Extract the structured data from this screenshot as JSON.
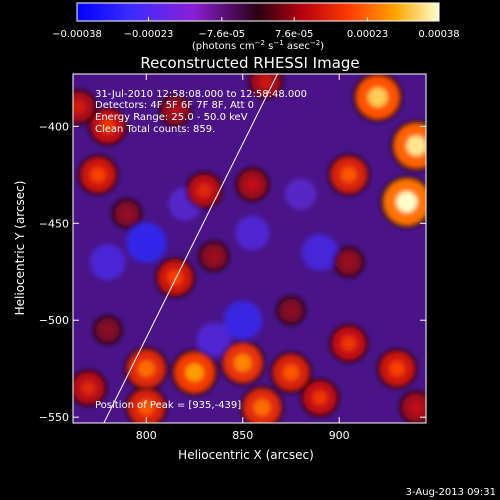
{
  "chart_data": {
    "type": "heatmap",
    "title": "Reconstructed RHESSI Image",
    "xlabel": "Heliocentric X (arcsec)",
    "ylabel": "Heliocentric Y (arcsec)",
    "xlim": [
      762,
      945
    ],
    "ylim": [
      -553,
      -373
    ],
    "xticks": [
      800,
      850,
      900
    ],
    "yticks": [
      -400,
      -450,
      -500,
      -550
    ],
    "colorbar": {
      "min": -0.00038,
      "max": 0.00038,
      "tick_labels": [
        "-0.00038",
        "-0.00023",
        "-7.6e-05",
        "7.6e-05",
        "0.00023",
        "0.00038"
      ],
      "label_parts": [
        "(photons cm",
        "-2",
        " s",
        "-1",
        " asec",
        "-2",
        ")"
      ]
    },
    "annotations": [
      "31-Jul-2010 12:58:08.000 to 12:58:48.000",
      "Detectors: 4F 5F 6F 7F 8F, Att 0",
      "Energy Range: 25.0 - 50.0 keV",
      "Clean    Total counts: 859."
    ],
    "peak_label": "Position of Peak = [935,-439]",
    "peak": [
      935,
      -439
    ],
    "limb_line": [
      [
        778,
        -553
      ],
      [
        868,
        -373
      ]
    ],
    "hot_spots": [
      {
        "x": 780,
        "y": -400,
        "value": 0.0002
      },
      {
        "x": 775,
        "y": -425,
        "value": 0.00022
      },
      {
        "x": 765,
        "y": -390,
        "value": 0.00016
      },
      {
        "x": 815,
        "y": -392,
        "value": 0.00012
      },
      {
        "x": 862,
        "y": -377,
        "value": 0.00015
      },
      {
        "x": 920,
        "y": -385,
        "value": 0.00034
      },
      {
        "x": 940,
        "y": -410,
        "value": 0.00036
      },
      {
        "x": 935,
        "y": -439,
        "value": 0.00038
      },
      {
        "x": 905,
        "y": -425,
        "value": 0.00024
      },
      {
        "x": 830,
        "y": -433,
        "value": 0.00018
      },
      {
        "x": 855,
        "y": -430,
        "value": 0.00014
      },
      {
        "x": 790,
        "y": -445,
        "value": 9e-05
      },
      {
        "x": 815,
        "y": -478,
        "value": 0.00022
      },
      {
        "x": 835,
        "y": -467,
        "value": 0.0001
      },
      {
        "x": 780,
        "y": -505,
        "value": 8e-05
      },
      {
        "x": 875,
        "y": -495,
        "value": 8e-05
      },
      {
        "x": 905,
        "y": -470,
        "value": 0.0001
      },
      {
        "x": 800,
        "y": -525,
        "value": 0.00026
      },
      {
        "x": 825,
        "y": -527,
        "value": 0.0003
      },
      {
        "x": 850,
        "y": -522,
        "value": 0.00028
      },
      {
        "x": 875,
        "y": -527,
        "value": 0.00024
      },
      {
        "x": 905,
        "y": -512,
        "value": 0.0002
      },
      {
        "x": 930,
        "y": -525,
        "value": 0.00022
      },
      {
        "x": 800,
        "y": -545,
        "value": 0.00024
      },
      {
        "x": 860,
        "y": -545,
        "value": 0.00026
      },
      {
        "x": 890,
        "y": -540,
        "value": 0.0002
      },
      {
        "x": 770,
        "y": -535,
        "value": 0.00018
      },
      {
        "x": 940,
        "y": -545,
        "value": 0.00014
      }
    ],
    "cold_spots": [
      {
        "x": 800,
        "y": -460,
        "value": -0.0003
      },
      {
        "x": 850,
        "y": -500,
        "value": -0.00028
      },
      {
        "x": 890,
        "y": -465,
        "value": -0.00025
      },
      {
        "x": 855,
        "y": -455,
        "value": -0.00022
      },
      {
        "x": 820,
        "y": -440,
        "value": -0.0002
      },
      {
        "x": 835,
        "y": -510,
        "value": -0.00022
      },
      {
        "x": 880,
        "y": -435,
        "value": -0.00018
      },
      {
        "x": 780,
        "y": -470,
        "value": -0.00024
      }
    ]
  },
  "timestamp": "3-Aug-2013 09:31"
}
